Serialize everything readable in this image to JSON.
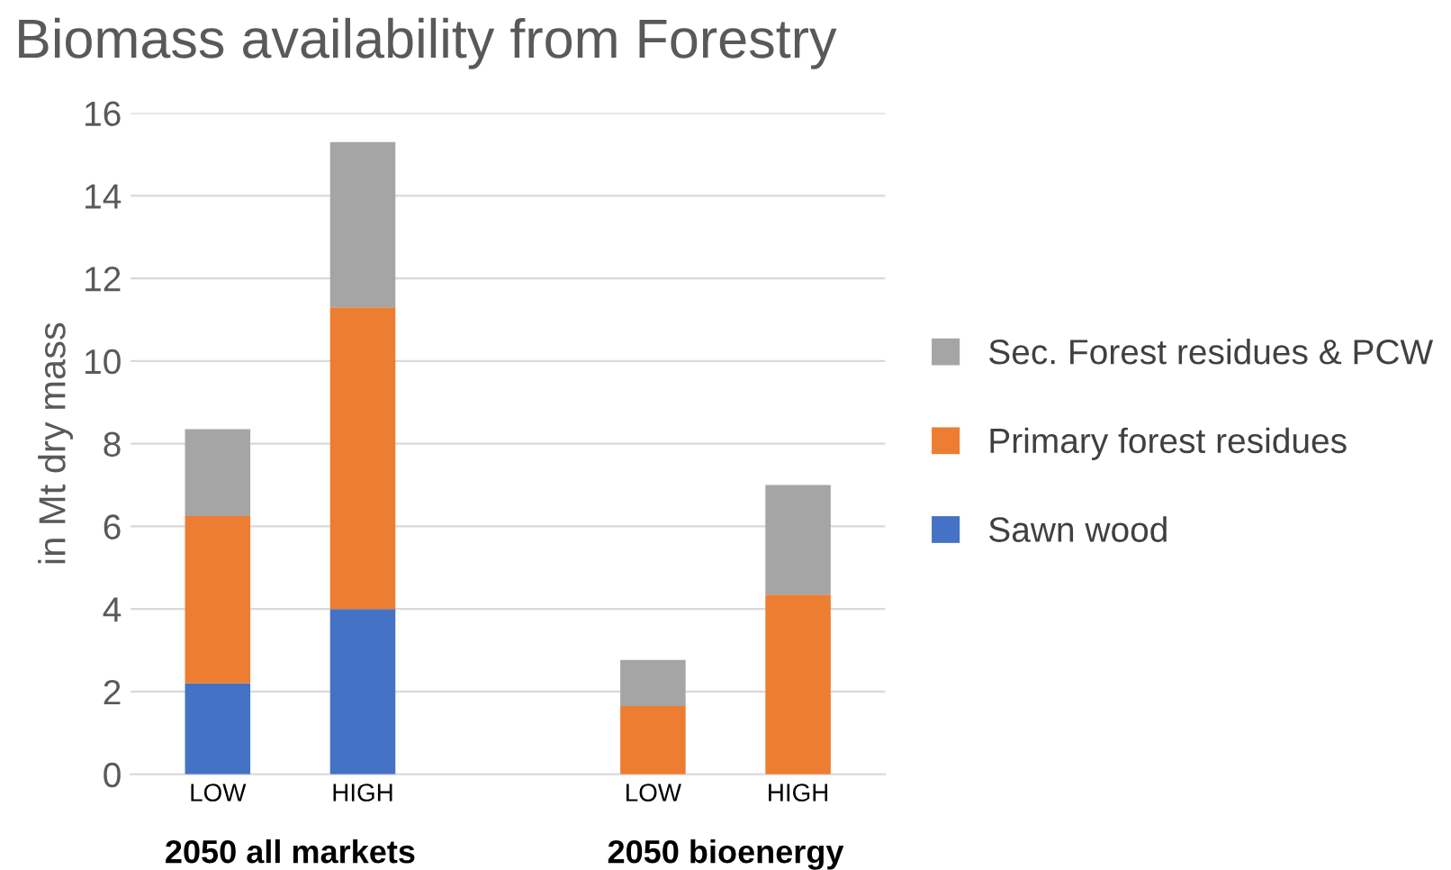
{
  "chart_data": {
    "type": "bar",
    "stacked": true,
    "title": "Biomass availability from Forestry",
    "ylabel": "in Mt dry mass",
    "categories": [
      "LOW",
      "HIGH",
      null,
      "LOW",
      "HIGH"
    ],
    "series": [
      {
        "name": "Sawn wood",
        "color": "#4472c4",
        "values": [
          2.2,
          4.0,
          null,
          0,
          0
        ]
      },
      {
        "name": "Primary forest residues",
        "color": "#ed7d31",
        "values": [
          4.05,
          7.3,
          null,
          1.65,
          4.35
        ]
      },
      {
        "name": "Sec. Forest residues & PCW",
        "color": "#a5a5a5",
        "values": [
          2.1,
          4.0,
          null,
          1.12,
          2.65
        ]
      }
    ],
    "ylim": [
      0,
      16
    ],
    "yticks": [
      0,
      2,
      4,
      6,
      8,
      10,
      12,
      14,
      16
    ],
    "grid": "y",
    "legend": "right",
    "annotations": [
      "2050 all markets",
      "2050 bioenergy"
    ]
  }
}
